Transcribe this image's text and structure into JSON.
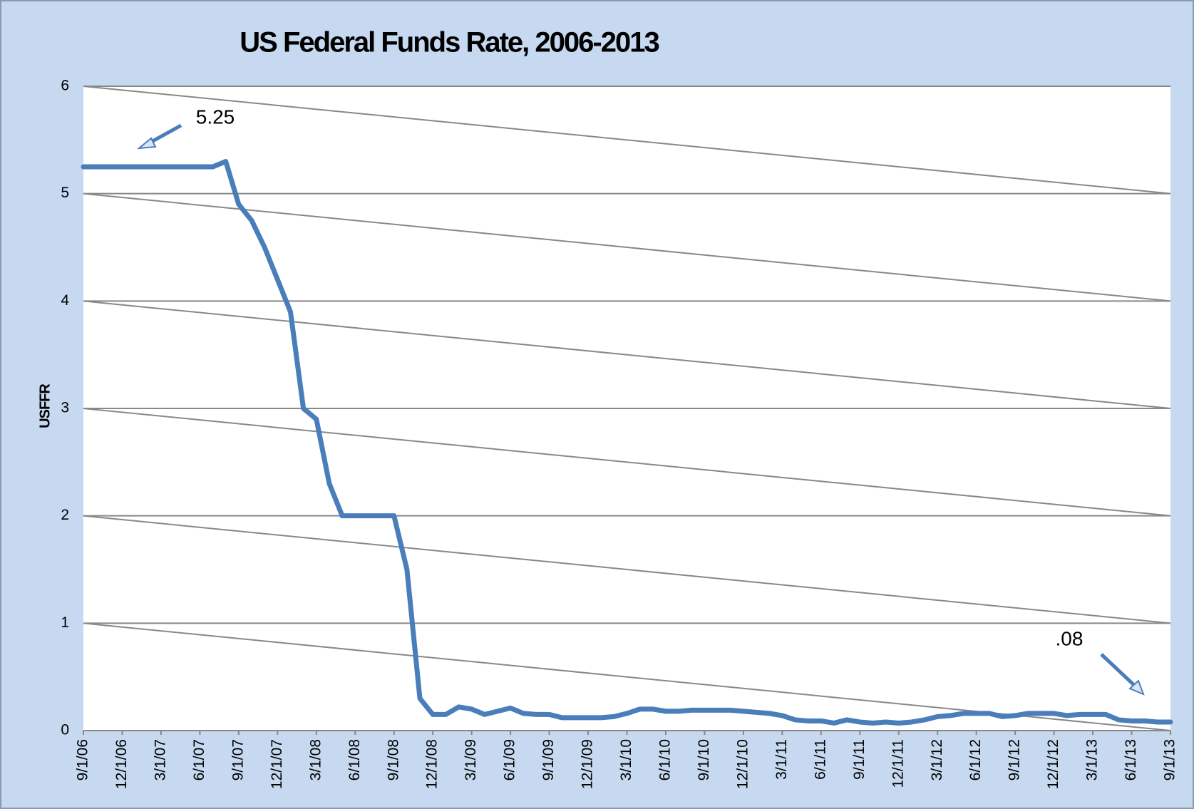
{
  "chart_data": {
    "type": "line",
    "title": "US Federal Funds Rate, 2006-2013",
    "y_label": "USFFR",
    "categories": [
      "9/1/06",
      null,
      null,
      "12/1/06",
      null,
      null,
      "3/1/07",
      null,
      null,
      "6/1/07",
      null,
      null,
      "9/1/07",
      null,
      null,
      "12/1/07",
      null,
      null,
      "3/1/08",
      null,
      null,
      "6/1/08",
      null,
      null,
      "9/1/08",
      null,
      null,
      "12/1/08",
      null,
      null,
      "3/1/09",
      null,
      null,
      "6/1/09",
      null,
      null,
      "9/1/09",
      null,
      null,
      "12/1/09",
      null,
      null,
      "3/1/10",
      null,
      null,
      "6/1/10",
      null,
      null,
      "9/1/10",
      null,
      null,
      "12/1/10",
      null,
      null,
      "3/1/11",
      null,
      null,
      "6/1/11",
      null,
      null,
      "9/1/11",
      null,
      null,
      "12/1/11",
      null,
      null,
      "3/1/12",
      null,
      null,
      "6/1/12",
      null,
      null,
      "9/1/12",
      null,
      null,
      "12/1/12",
      null,
      null,
      "3/1/13",
      null,
      null,
      "6/1/13",
      null,
      null,
      "9/1/13"
    ],
    "series": [
      {
        "name": "USFFR",
        "color": "#4a7ebb",
        "values": [
          5.25,
          5.25,
          5.25,
          5.25,
          5.25,
          5.25,
          5.25,
          5.25,
          5.25,
          5.25,
          5.25,
          5.3,
          4.9,
          4.75,
          4.5,
          4.2,
          3.9,
          3.0,
          2.9,
          2.3,
          2.0,
          2.0,
          2.0,
          2.0,
          2.0,
          1.5,
          0.3,
          0.15,
          0.15,
          0.22,
          0.2,
          0.15,
          0.18,
          0.21,
          0.16,
          0.15,
          0.15,
          0.12,
          0.12,
          0.12,
          0.12,
          0.13,
          0.16,
          0.2,
          0.2,
          0.18,
          0.18,
          0.19,
          0.19,
          0.19,
          0.19,
          0.18,
          0.17,
          0.16,
          0.14,
          0.1,
          0.09,
          0.09,
          0.07,
          0.1,
          0.08,
          0.07,
          0.08,
          0.07,
          0.08,
          0.1,
          0.13,
          0.14,
          0.16,
          0.16,
          0.16,
          0.13,
          0.14,
          0.16,
          0.16,
          0.16,
          0.14,
          0.15,
          0.15,
          0.15,
          0.1,
          0.09,
          0.09,
          0.08,
          0.08
        ]
      }
    ],
    "ylim": [
      0,
      6
    ],
    "yticks": [
      0,
      1,
      2,
      3,
      4,
      5,
      6
    ],
    "grid": true,
    "annotations": [
      {
        "text": "5.25"
      },
      {
        "text": ".08"
      }
    ]
  }
}
